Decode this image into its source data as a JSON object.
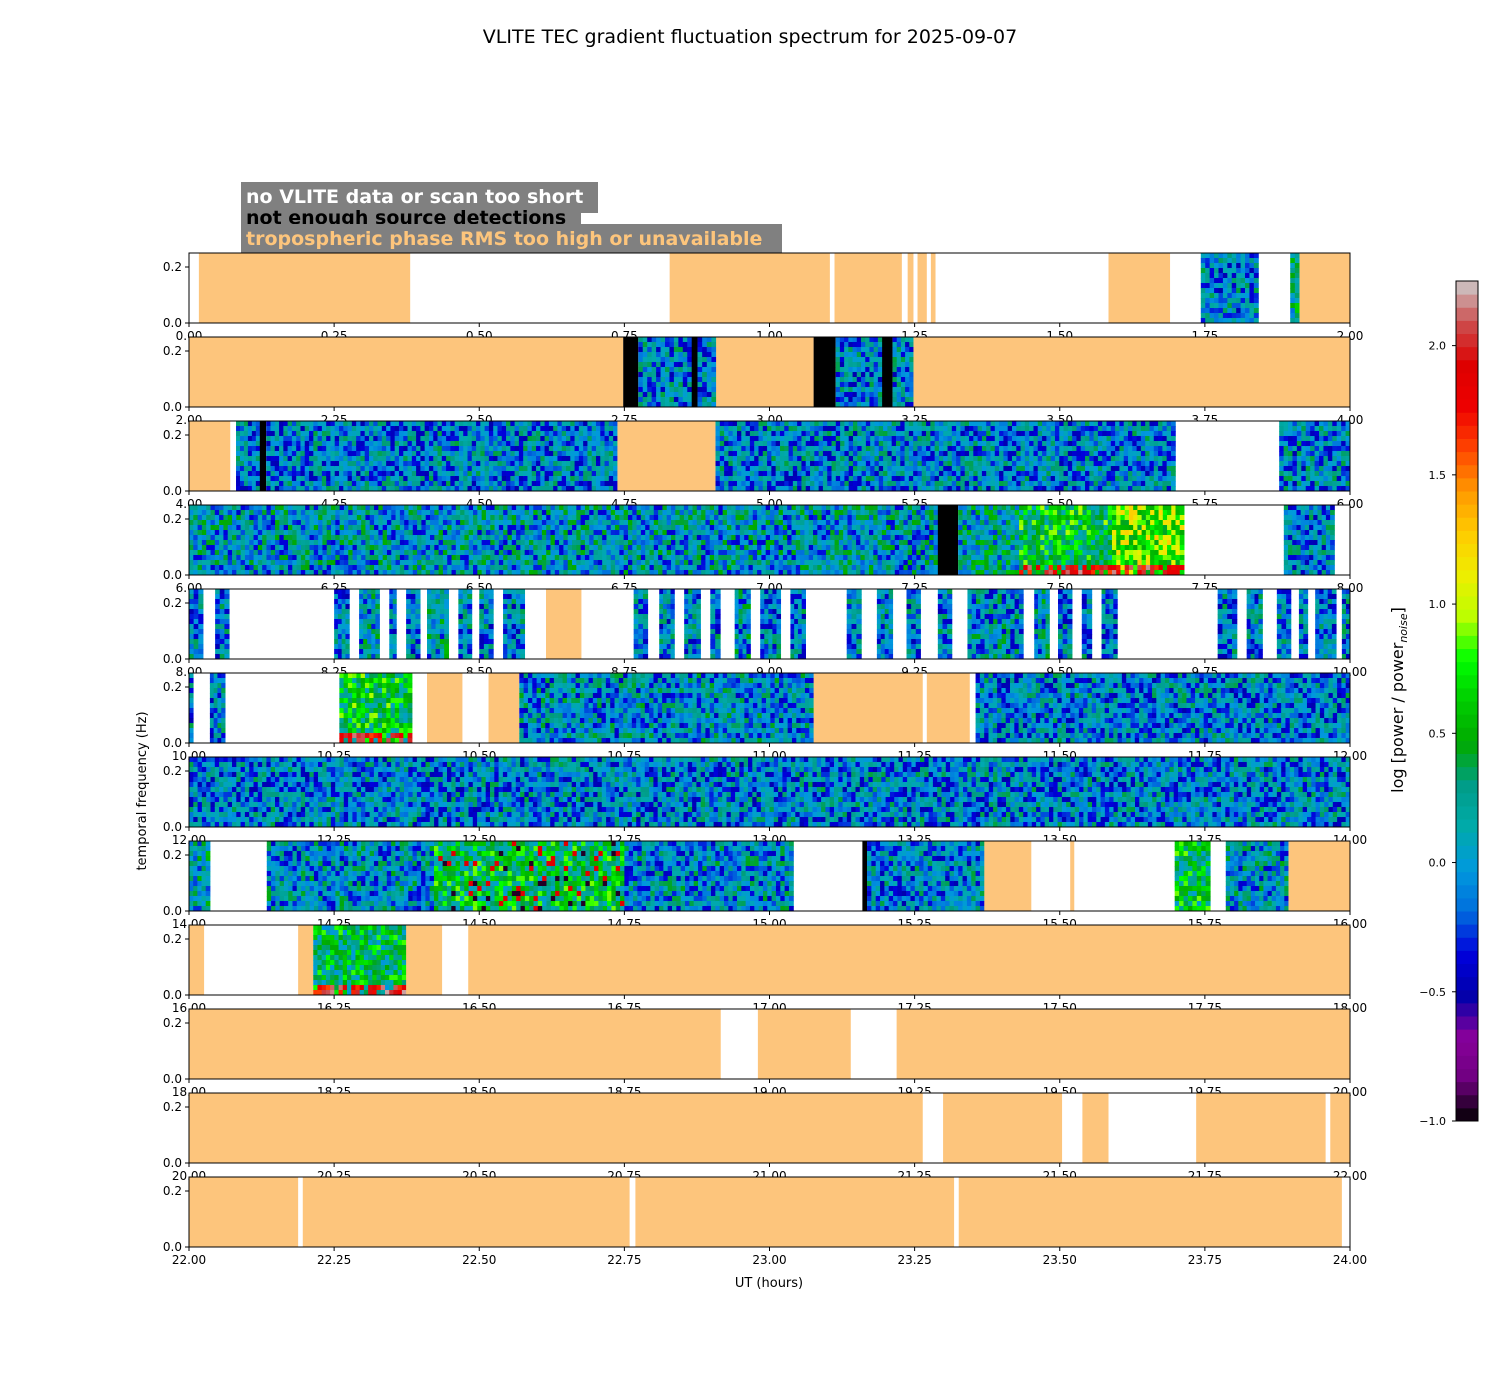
{
  "chart_data": {
    "type": "heatmap",
    "title": "VLITE TEC gradient fluctuation spectrum for 2025-09-07",
    "xlabel": "UT (hours)",
    "ylabel": "temporal frequency (Hz)",
    "colorbar": {
      "label_main": "log [power / power",
      "label_sub": "noise",
      "label_end": "]",
      "range": [
        -1.0,
        2.25
      ],
      "ticks": [
        "−1.0",
        "−0.5",
        "0.0",
        "0.5",
        "1.0",
        "1.5",
        "2.0"
      ],
      "tick_values": [
        -1.0,
        -0.5,
        0.0,
        0.5,
        1.0,
        1.5,
        2.0
      ]
    },
    "legend": {
      "placement": "top-left",
      "items": [
        {
          "label": "no VLITE data or scan too short",
          "color": "#ffffff"
        },
        {
          "label": "not enough source detections",
          "color": "#000000"
        },
        {
          "label": "tropospheric phase RMS too high or unavailable",
          "color": "#fdc57c"
        }
      ]
    },
    "colors": {
      "trop": "#fdc57c",
      "nodet": "#000000",
      "nodata": "#ffffff",
      "legend_bg": "#808080"
    },
    "y_ticks": [
      "0.0",
      "0.2"
    ],
    "y_tick_values": [
      0.0,
      0.2
    ],
    "ylim": [
      0,
      0.25
    ],
    "panels": [
      {
        "xlim": [
          0,
          2
        ],
        "xticks": [
          "0.00",
          "0.25",
          "0.50",
          "0.75",
          "1.00",
          "1.25",
          "1.50",
          "1.75",
          "2.00"
        ],
        "segments": [
          {
            "s": 0.017,
            "e": 0.381,
            "type": "trop"
          },
          {
            "s": 0.828,
            "e": 1.104,
            "type": "trop"
          },
          {
            "s": 1.112,
            "e": 1.228,
            "type": "trop"
          },
          {
            "s": 1.238,
            "e": 1.248,
            "type": "trop"
          },
          {
            "s": 1.255,
            "e": 1.271,
            "type": "trop"
          },
          {
            "s": 1.278,
            "e": 1.286,
            "type": "trop"
          },
          {
            "s": 1.584,
            "e": 1.69,
            "type": "trop"
          },
          {
            "s": 1.743,
            "e": 1.842,
            "type": "data",
            "intensity": 0.0
          },
          {
            "s": 1.897,
            "e": 1.913,
            "type": "data",
            "intensity": 0.3
          },
          {
            "s": 1.913,
            "e": 2.0,
            "type": "trop"
          }
        ]
      },
      {
        "xlim": [
          2,
          4
        ],
        "xticks": [
          "2.00",
          "2.25",
          "2.50",
          "2.75",
          "3.00",
          "3.25",
          "3.50",
          "3.75",
          "4.00"
        ],
        "segments": [
          {
            "s": 2.0,
            "e": 2.748,
            "type": "trop"
          },
          {
            "s": 2.748,
            "e": 2.774,
            "type": "nodet"
          },
          {
            "s": 2.774,
            "e": 2.866,
            "type": "data",
            "intensity": 0.0
          },
          {
            "s": 2.866,
            "e": 2.876,
            "type": "nodet"
          },
          {
            "s": 2.876,
            "e": 2.908,
            "type": "data",
            "intensity": 0.0
          },
          {
            "s": 2.908,
            "e": 3.076,
            "type": "trop"
          },
          {
            "s": 3.076,
            "e": 3.114,
            "type": "nodet"
          },
          {
            "s": 3.114,
            "e": 3.194,
            "type": "data",
            "intensity": 0.0
          },
          {
            "s": 3.194,
            "e": 3.212,
            "type": "nodet"
          },
          {
            "s": 3.212,
            "e": 3.248,
            "type": "data",
            "intensity": 0.0
          },
          {
            "s": 3.248,
            "e": 4.0,
            "type": "trop"
          }
        ]
      },
      {
        "xlim": [
          4,
          6
        ],
        "xticks": [
          "4.00",
          "4.25",
          "4.50",
          "4.75",
          "5.00",
          "5.25",
          "5.50",
          "5.75",
          "6.00"
        ],
        "segments": [
          {
            "s": 4.0,
            "e": 4.071,
            "type": "trop"
          },
          {
            "s": 4.081,
            "e": 4.122,
            "type": "data",
            "intensity": 0.0
          },
          {
            "s": 4.122,
            "e": 4.133,
            "type": "nodet"
          },
          {
            "s": 4.133,
            "e": 4.738,
            "type": "data",
            "intensity": 0.0
          },
          {
            "s": 4.738,
            "e": 4.907,
            "type": "trop"
          },
          {
            "s": 4.907,
            "e": 5.699,
            "type": "data",
            "intensity": 0.0
          },
          {
            "s": 5.878,
            "e": 6.0,
            "type": "data",
            "intensity": 0.0
          }
        ]
      },
      {
        "xlim": [
          6,
          8
        ],
        "xticks": [
          "6.00",
          "6.25",
          "6.50",
          "6.75",
          "7.00",
          "7.25",
          "7.50",
          "7.75",
          "8.00"
        ],
        "segments": [
          {
            "s": 6.0,
            "e": 7.29,
            "type": "data",
            "intensity": 0.1
          },
          {
            "s": 7.29,
            "e": 7.325,
            "type": "nodet"
          },
          {
            "s": 7.325,
            "e": 7.43,
            "type": "data",
            "intensity": 0.2
          },
          {
            "s": 7.43,
            "e": 7.59,
            "type": "data",
            "intensity": 0.55,
            "hot_bottom": true
          },
          {
            "s": 7.59,
            "e": 7.714,
            "type": "data",
            "intensity": 0.9,
            "hot_bottom": true
          },
          {
            "s": 7.886,
            "e": 7.973,
            "type": "data",
            "intensity": 0.0
          }
        ]
      },
      {
        "xlim": [
          8,
          10
        ],
        "xticks": [
          "8.00",
          "8.25",
          "8.50",
          "8.75",
          "9.00",
          "9.25",
          "9.50",
          "9.75",
          "10.00"
        ],
        "segments": [
          {
            "s": 8.0,
            "e": 8.024,
            "type": "data",
            "intensity": 0.0
          },
          {
            "s": 8.045,
            "e": 8.069,
            "type": "data",
            "intensity": 0.0
          },
          {
            "s": 8.25,
            "e": 8.276,
            "type": "data",
            "intensity": 0.0
          },
          {
            "s": 8.293,
            "e": 8.328,
            "type": "data",
            "intensity": 0.1
          },
          {
            "s": 8.345,
            "e": 8.357,
            "type": "data",
            "intensity": 0.0
          },
          {
            "s": 8.374,
            "e": 8.398,
            "type": "data",
            "intensity": 0.0
          },
          {
            "s": 8.41,
            "e": 8.447,
            "type": "data",
            "intensity": 0.15
          },
          {
            "s": 8.464,
            "e": 8.487,
            "type": "data",
            "intensity": 0.0
          },
          {
            "s": 8.5,
            "e": 8.524,
            "type": "data",
            "intensity": 0.0
          },
          {
            "s": 8.541,
            "e": 8.578,
            "type": "data",
            "intensity": 0.0
          },
          {
            "s": 8.615,
            "e": 8.676,
            "type": "trop"
          },
          {
            "s": 8.766,
            "e": 8.79,
            "type": "data",
            "intensity": 0.0
          },
          {
            "s": 8.81,
            "e": 8.836,
            "type": "data",
            "intensity": 0.0
          },
          {
            "s": 8.853,
            "e": 8.881,
            "type": "data",
            "intensity": 0.0
          },
          {
            "s": 8.898,
            "e": 8.915,
            "type": "data",
            "intensity": 0.0
          },
          {
            "s": 8.94,
            "e": 8.967,
            "type": "data",
            "intensity": 0.1
          },
          {
            "s": 8.984,
            "e": 9.019,
            "type": "data",
            "intensity": 0.0
          },
          {
            "s": 9.036,
            "e": 9.062,
            "type": "data",
            "intensity": 0.0
          },
          {
            "s": 9.133,
            "e": 9.158,
            "type": "data",
            "intensity": 0.0
          },
          {
            "s": 9.185,
            "e": 9.212,
            "type": "data",
            "intensity": 0.0
          },
          {
            "s": 9.236,
            "e": 9.26,
            "type": "data",
            "intensity": 0.0
          },
          {
            "s": 9.29,
            "e": 9.314,
            "type": "data",
            "intensity": 0.0
          },
          {
            "s": 9.341,
            "e": 9.437,
            "type": "data",
            "intensity": 0.05
          },
          {
            "s": 9.456,
            "e": 9.482,
            "type": "data",
            "intensity": 0.1
          },
          {
            "s": 9.497,
            "e": 9.521,
            "type": "data",
            "intensity": 0.0
          },
          {
            "s": 9.538,
            "e": 9.555,
            "type": "data",
            "intensity": 0.0
          },
          {
            "s": 9.572,
            "e": 9.599,
            "type": "data",
            "intensity": 0.0
          },
          {
            "s": 9.772,
            "e": 9.805,
            "type": "data",
            "intensity": 0.0
          },
          {
            "s": 9.822,
            "e": 9.849,
            "type": "data",
            "intensity": 0.0
          },
          {
            "s": 9.874,
            "e": 9.898,
            "type": "data",
            "intensity": 0.0
          },
          {
            "s": 9.912,
            "e": 9.927,
            "type": "data",
            "intensity": 0.0
          },
          {
            "s": 9.94,
            "e": 9.976,
            "type": "data",
            "intensity": 0.0
          },
          {
            "s": 9.986,
            "e": 10.0,
            "type": "data",
            "intensity": 0.0
          }
        ]
      },
      {
        "xlim": [
          10,
          12
        ],
        "xticks": [
          "10.00",
          "10.25",
          "10.50",
          "10.75",
          "11.00",
          "11.25",
          "11.50",
          "11.75",
          "12.00"
        ],
        "segments": [
          {
            "s": 10.0,
            "e": 10.007,
            "type": "data",
            "intensity": 0.0
          },
          {
            "s": 10.036,
            "e": 10.062,
            "type": "data",
            "intensity": 0.0
          },
          {
            "s": 10.259,
            "e": 10.384,
            "type": "data",
            "intensity": 0.55,
            "hot_bottom": true
          },
          {
            "s": 10.41,
            "e": 10.471,
            "type": "trop"
          },
          {
            "s": 10.516,
            "e": 10.569,
            "type": "trop"
          },
          {
            "s": 10.569,
            "e": 11.076,
            "type": "data",
            "intensity": 0.05
          },
          {
            "s": 11.076,
            "e": 11.264,
            "type": "trop"
          },
          {
            "s": 11.271,
            "e": 11.345,
            "type": "trop"
          },
          {
            "s": 11.355,
            "e": 12.0,
            "type": "data",
            "intensity": 0.0
          }
        ]
      },
      {
        "xlim": [
          12,
          14
        ],
        "xticks": [
          "12.00",
          "12.25",
          "12.50",
          "12.75",
          "13.00",
          "13.25",
          "13.50",
          "13.75",
          "14.00"
        ],
        "segments": [
          {
            "s": 12.0,
            "e": 14.0,
            "type": "data",
            "intensity": 0.0
          }
        ]
      },
      {
        "xlim": [
          14,
          16
        ],
        "xticks": [
          "14.00",
          "14.25",
          "14.50",
          "14.75",
          "15.00",
          "15.25",
          "15.50",
          "15.75",
          "16.00"
        ],
        "segments": [
          {
            "s": 14.0,
            "e": 14.036,
            "type": "data",
            "intensity": 0.2
          },
          {
            "s": 14.134,
            "e": 14.422,
            "type": "data",
            "intensity": 0.05
          },
          {
            "s": 14.422,
            "e": 14.75,
            "type": "data",
            "intensity": 0.5,
            "speckle": true
          },
          {
            "s": 14.75,
            "e": 15.041,
            "type": "data",
            "intensity": 0.05
          },
          {
            "s": 15.16,
            "e": 15.168,
            "type": "nodet"
          },
          {
            "s": 15.168,
            "e": 15.37,
            "type": "data",
            "intensity": 0.0
          },
          {
            "s": 15.37,
            "e": 15.451,
            "type": "trop"
          },
          {
            "s": 15.518,
            "e": 15.525,
            "type": "trop"
          },
          {
            "s": 15.698,
            "e": 15.759,
            "type": "data",
            "intensity": 0.5
          },
          {
            "s": 15.786,
            "e": 15.894,
            "type": "data",
            "intensity": 0.05
          },
          {
            "s": 15.894,
            "e": 16.0,
            "type": "trop"
          }
        ]
      },
      {
        "xlim": [
          16,
          18
        ],
        "xticks": [
          "16.00",
          "16.25",
          "16.50",
          "16.75",
          "17.00",
          "17.25",
          "17.50",
          "17.75",
          "18.00"
        ],
        "segments": [
          {
            "s": 16.0,
            "e": 16.026,
            "type": "trop"
          },
          {
            "s": 16.188,
            "e": 16.214,
            "type": "trop"
          },
          {
            "s": 16.214,
            "e": 16.374,
            "type": "data",
            "intensity": 0.45,
            "hot_bottom": true
          },
          {
            "s": 16.374,
            "e": 16.436,
            "type": "trop"
          },
          {
            "s": 16.481,
            "e": 18.0,
            "type": "trop"
          }
        ]
      },
      {
        "xlim": [
          18,
          20
        ],
        "xticks": [
          "18.00",
          "18.25",
          "18.50",
          "18.75",
          "19.00",
          "19.25",
          "19.50",
          "19.75",
          "20.00"
        ],
        "segments": [
          {
            "s": 18.0,
            "e": 18.916,
            "type": "trop"
          },
          {
            "s": 18.98,
            "e": 19.14,
            "type": "trop"
          },
          {
            "s": 19.219,
            "e": 20.0,
            "type": "trop"
          }
        ]
      },
      {
        "xlim": [
          20,
          22
        ],
        "xticks": [
          "20.00",
          "20.25",
          "20.50",
          "20.75",
          "21.00",
          "21.25",
          "21.50",
          "21.75",
          "22.00"
        ],
        "segments": [
          {
            "s": 20.0,
            "e": 21.264,
            "type": "trop"
          },
          {
            "s": 21.299,
            "e": 21.504,
            "type": "trop"
          },
          {
            "s": 21.539,
            "e": 21.584,
            "type": "trop"
          },
          {
            "s": 21.735,
            "e": 21.958,
            "type": "trop"
          },
          {
            "s": 21.966,
            "e": 22.0,
            "type": "trop"
          }
        ]
      },
      {
        "xlim": [
          22,
          24
        ],
        "xticks": [
          "22.00",
          "22.25",
          "22.50",
          "22.75",
          "23.00",
          "23.25",
          "23.50",
          "23.75",
          "24.00"
        ],
        "segments": [
          {
            "s": 22.0,
            "e": 22.188,
            "type": "trop"
          },
          {
            "s": 22.196,
            "e": 22.759,
            "type": "trop"
          },
          {
            "s": 22.769,
            "e": 23.318,
            "type": "trop"
          },
          {
            "s": 23.326,
            "e": 23.986,
            "type": "trop"
          }
        ]
      }
    ]
  }
}
